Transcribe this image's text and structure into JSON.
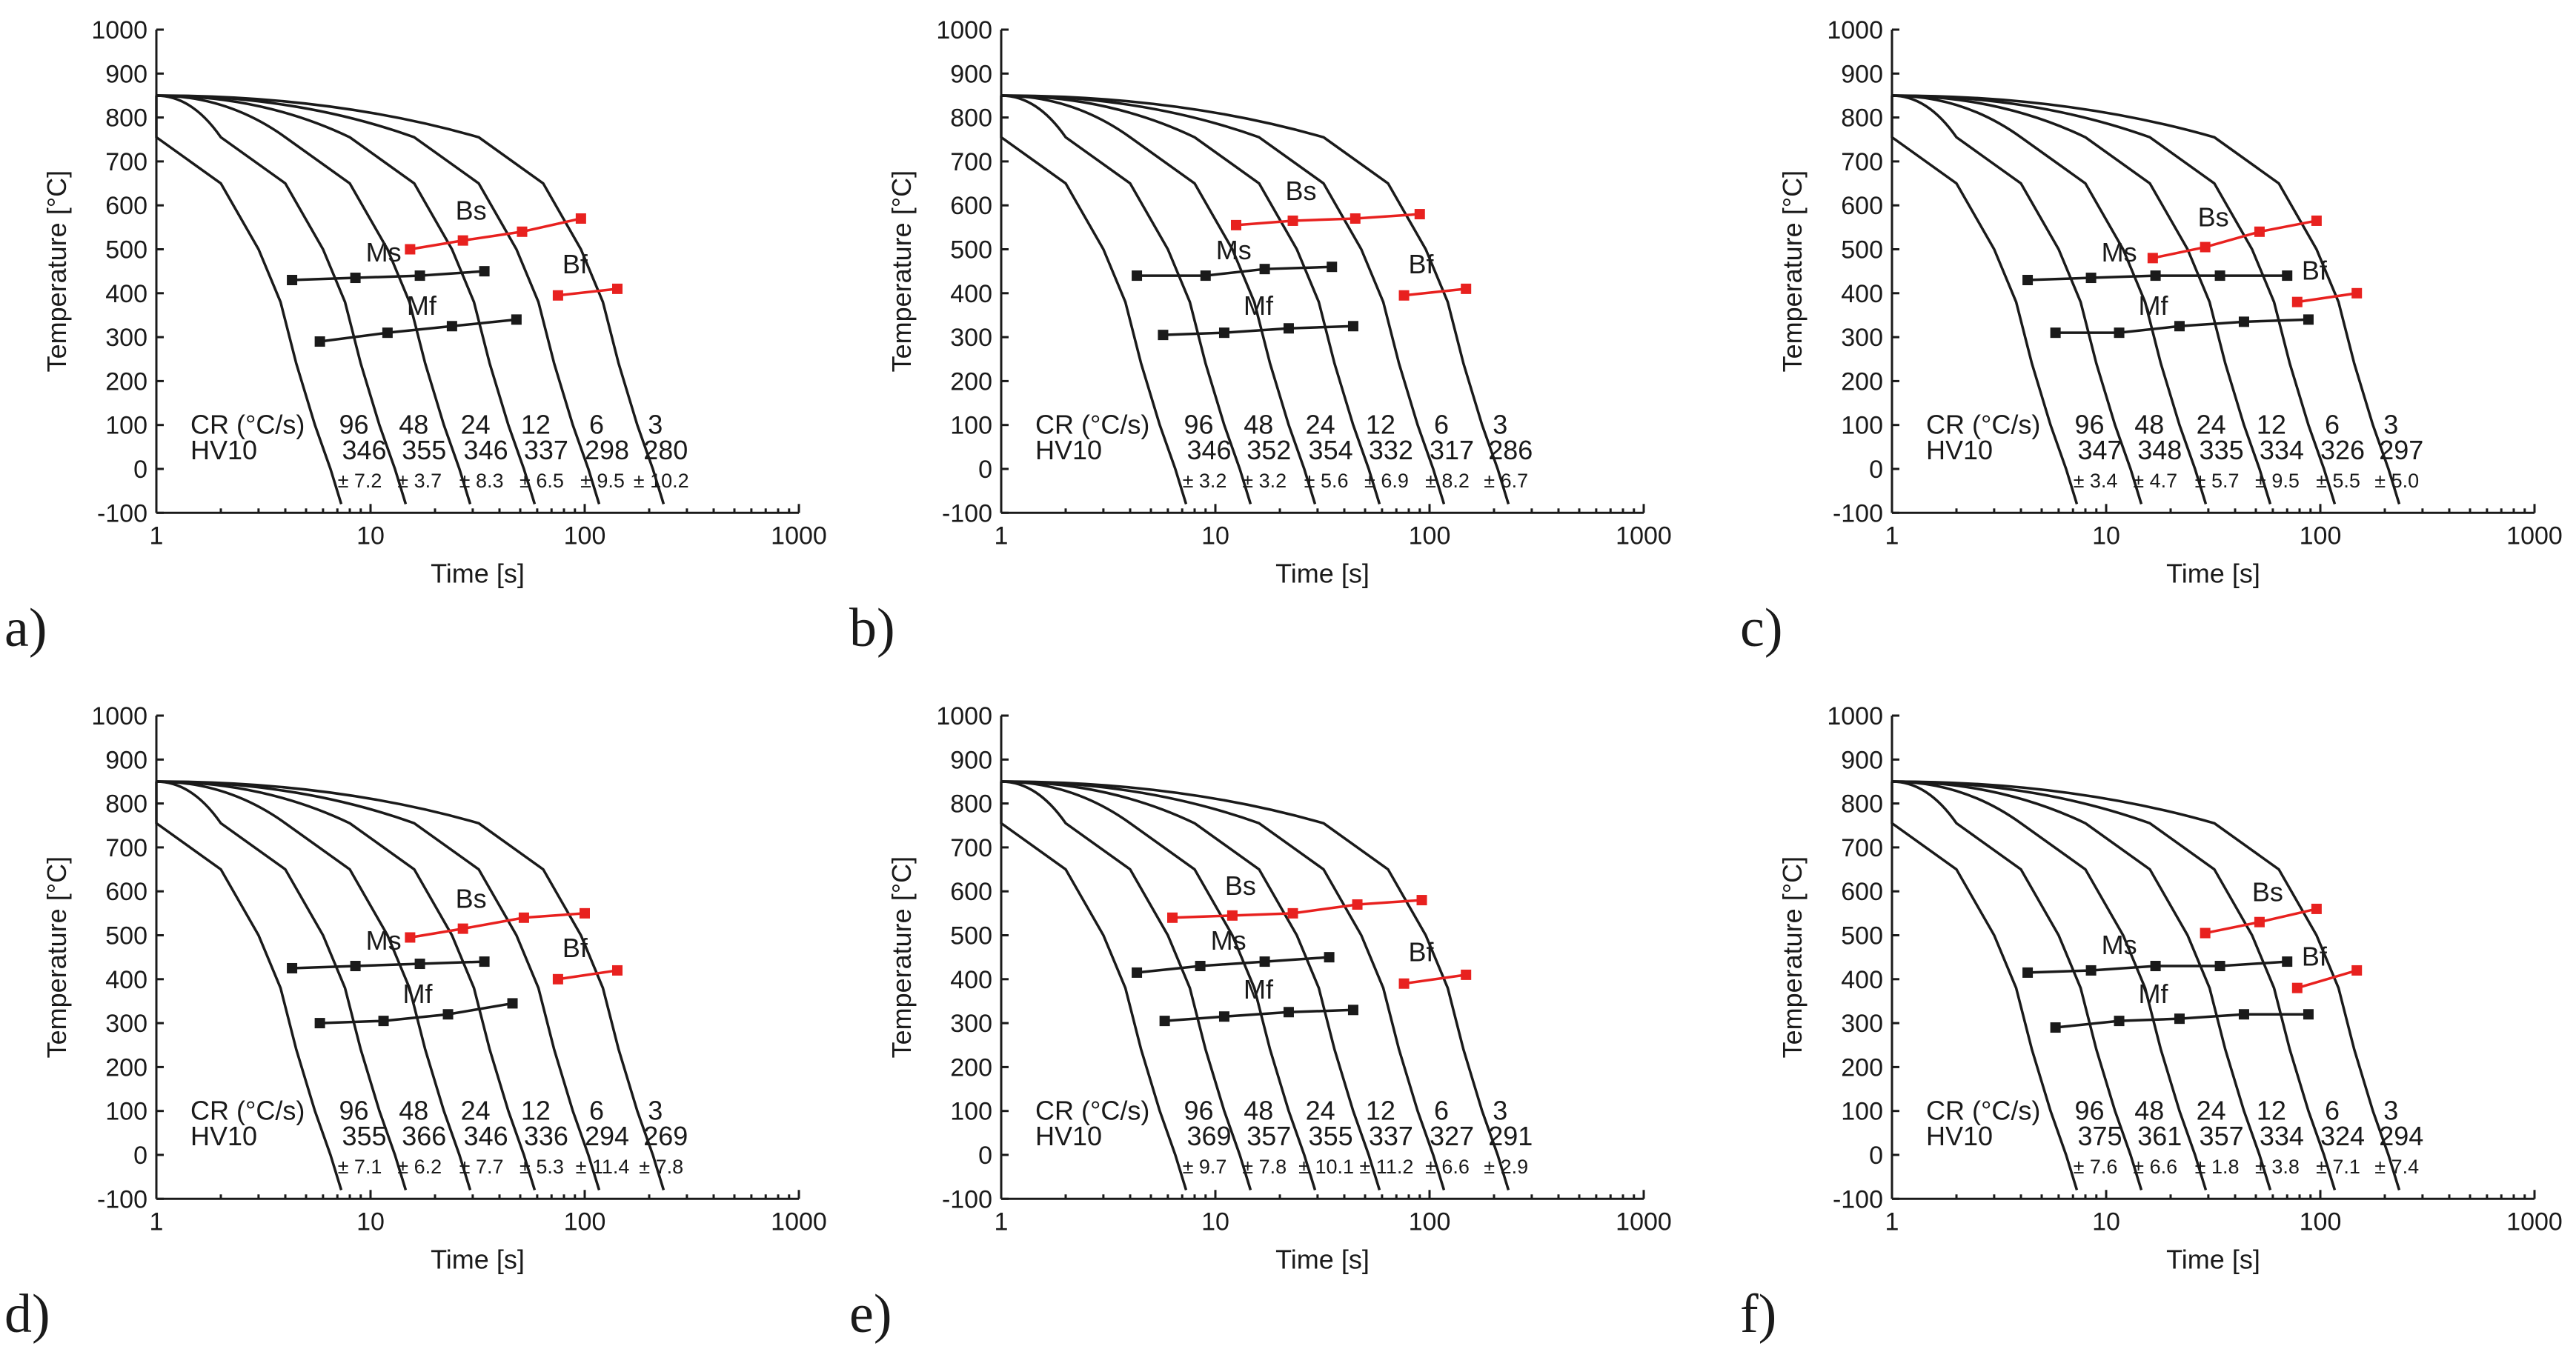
{
  "figure": {
    "x_axis": {
      "title": "Time [s]",
      "min": 1,
      "max": 1000,
      "scale": "log",
      "ticks": [
        1,
        10,
        100,
        1000
      ],
      "tick_labels": [
        "1",
        "10",
        "100",
        "1000"
      ]
    },
    "y_axis": {
      "title": "Temperature [°C]",
      "min": -100,
      "max": 1000,
      "ticks": [
        -100,
        0,
        100,
        200,
        300,
        400,
        500,
        600,
        700,
        800,
        900,
        1000
      ],
      "tick_labels": [
        "-100",
        "0",
        "100",
        "200",
        "300",
        "400",
        "500",
        "600",
        "700",
        "800",
        "900",
        "1000"
      ]
    },
    "cr_label": "CR (°C/s)",
    "hv_label": "HV10",
    "colors": {
      "curve": "#1a1a1a",
      "martensite": "#1a1a1a",
      "bainite": "#e8211f"
    }
  },
  "chart_data": [
    {
      "type": "line",
      "panel": "a)",
      "title": "",
      "xlabel": "Time [s]",
      "ylabel": "Temperature [°C]",
      "x_scale": "log",
      "xlim": [
        1,
        1000
      ],
      "ylim": [
        -100,
        1000
      ],
      "cooling_rates": [
        "96",
        "48",
        "24",
        "12",
        "6",
        "3"
      ],
      "hardness": [
        "346",
        "355",
        "346",
        "337",
        "298",
        "280"
      ],
      "hardness_sd": [
        "± 7.2",
        "± 3.7",
        "± 8.3",
        "± 6.5",
        "± 9.5",
        "± 10.2"
      ],
      "series": [
        {
          "name": "Ms",
          "color": "#1a1a1a",
          "points": [
            [
              4.3,
              430
            ],
            [
              8.5,
              435
            ],
            [
              17,
              440
            ],
            [
              34,
              450
            ]
          ]
        },
        {
          "name": "Mf",
          "color": "#1a1a1a",
          "points": [
            [
              5.8,
              290
            ],
            [
              12,
              310
            ],
            [
              24,
              325
            ],
            [
              48,
              340
            ]
          ]
        },
        {
          "name": "Bs",
          "color": "#e8211f",
          "points": [
            [
              15.3,
              500
            ],
            [
              27,
              520
            ],
            [
              51,
              540
            ],
            [
              96,
              570
            ]
          ]
        },
        {
          "name": "Bf",
          "color": "#e8211f",
          "points": [
            [
              75,
              395
            ],
            [
              142,
              410
            ]
          ]
        }
      ]
    },
    {
      "type": "line",
      "panel": "b)",
      "title": "",
      "xlabel": "Time [s]",
      "ylabel": "Temperature [°C]",
      "x_scale": "log",
      "xlim": [
        1,
        1000
      ],
      "ylim": [
        -100,
        1000
      ],
      "cooling_rates": [
        "96",
        "48",
        "24",
        "12",
        "6",
        "3"
      ],
      "hardness": [
        "346",
        "352",
        "354",
        "332",
        "317",
        "286"
      ],
      "hardness_sd": [
        "± 3.2",
        "± 3.2",
        "± 5.6",
        "± 6.9",
        "± 8.2",
        "± 6.7"
      ],
      "series": [
        {
          "name": "Ms",
          "color": "#1a1a1a",
          "points": [
            [
              4.3,
              440
            ],
            [
              9,
              440
            ],
            [
              17,
              455
            ],
            [
              35,
              460
            ]
          ]
        },
        {
          "name": "Mf",
          "color": "#1a1a1a",
          "points": [
            [
              5.7,
              305
            ],
            [
              11,
              310
            ],
            [
              22,
              320
            ],
            [
              44,
              325
            ]
          ]
        },
        {
          "name": "Bs",
          "color": "#e8211f",
          "points": [
            [
              12.5,
              555
            ],
            [
              23,
              565
            ],
            [
              45,
              570
            ],
            [
              90,
              580
            ]
          ]
        },
        {
          "name": "Bf",
          "color": "#e8211f",
          "points": [
            [
              76,
              395
            ],
            [
              148,
              410
            ]
          ]
        }
      ]
    },
    {
      "type": "line",
      "panel": "c)",
      "title": "",
      "xlabel": "Time [s]",
      "ylabel": "Temperature [°C]",
      "x_scale": "log",
      "xlim": [
        1,
        1000
      ],
      "ylim": [
        -100,
        1000
      ],
      "cooling_rates": [
        "96",
        "48",
        "24",
        "12",
        "6",
        "3"
      ],
      "hardness": [
        "347",
        "348",
        "335",
        "334",
        "326",
        "297"
      ],
      "hardness_sd": [
        "± 3.4",
        "± 4.7",
        "± 5.7",
        "± 9.5",
        "± 5.5",
        "± 5.0"
      ],
      "series": [
        {
          "name": "Ms",
          "color": "#1a1a1a",
          "points": [
            [
              4.3,
              430
            ],
            [
              8.5,
              435
            ],
            [
              17,
              440
            ],
            [
              34,
              440
            ],
            [
              70,
              440
            ]
          ]
        },
        {
          "name": "Mf",
          "color": "#1a1a1a",
          "points": [
            [
              5.8,
              310
            ],
            [
              11.5,
              310
            ],
            [
              22,
              325
            ],
            [
              44,
              335
            ],
            [
              88,
              340
            ]
          ]
        },
        {
          "name": "Bs",
          "color": "#e8211f",
          "points": [
            [
              16.5,
              480
            ],
            [
              29,
              505
            ],
            [
              52,
              540
            ],
            [
              96,
              565
            ]
          ]
        },
        {
          "name": "Bf",
          "color": "#e8211f",
          "points": [
            [
              78,
              380
            ],
            [
              148,
              400
            ]
          ]
        }
      ]
    },
    {
      "type": "line",
      "panel": "d)",
      "title": "",
      "xlabel": "Time [s]",
      "ylabel": "Temperature [°C]",
      "x_scale": "log",
      "xlim": [
        1,
        1000
      ],
      "ylim": [
        -100,
        1000
      ],
      "cooling_rates": [
        "96",
        "48",
        "24",
        "12",
        "6",
        "3"
      ],
      "hardness": [
        "355",
        "366",
        "346",
        "336",
        "294",
        "269"
      ],
      "hardness_sd": [
        "± 7.1",
        "± 6.2",
        "± 7.7",
        "± 5.3",
        "± 11.4",
        "± 7.8"
      ],
      "series": [
        {
          "name": "Ms",
          "color": "#1a1a1a",
          "points": [
            [
              4.3,
              425
            ],
            [
              8.5,
              430
            ],
            [
              17,
              435
            ],
            [
              34,
              440
            ]
          ]
        },
        {
          "name": "Mf",
          "color": "#1a1a1a",
          "points": [
            [
              5.8,
              300
            ],
            [
              11.5,
              305
            ],
            [
              23,
              320
            ],
            [
              46,
              345
            ]
          ]
        },
        {
          "name": "Bs",
          "color": "#e8211f",
          "points": [
            [
              15.3,
              495
            ],
            [
              27,
              515
            ],
            [
              52,
              540
            ],
            [
              100,
              550
            ]
          ]
        },
        {
          "name": "Bf",
          "color": "#e8211f",
          "points": [
            [
              75,
              400
            ],
            [
              142,
              420
            ]
          ]
        }
      ]
    },
    {
      "type": "line",
      "panel": "e)",
      "title": "",
      "xlabel": "Time [s]",
      "ylabel": "Temperature [°C]",
      "x_scale": "log",
      "xlim": [
        1,
        1000
      ],
      "ylim": [
        -100,
        1000
      ],
      "cooling_rates": [
        "96",
        "48",
        "24",
        "12",
        "6",
        "3"
      ],
      "hardness": [
        "369",
        "357",
        "355",
        "337",
        "327",
        "291"
      ],
      "hardness_sd": [
        "± 9.7",
        "± 7.8",
        "± 10.1",
        "± 11.2",
        "± 6.6",
        "± 2.9"
      ],
      "series": [
        {
          "name": "Ms",
          "color": "#1a1a1a",
          "points": [
            [
              4.3,
              415
            ],
            [
              8.5,
              430
            ],
            [
              17,
              440
            ],
            [
              34,
              450
            ]
          ]
        },
        {
          "name": "Mf",
          "color": "#1a1a1a",
          "points": [
            [
              5.8,
              305
            ],
            [
              11,
              315
            ],
            [
              22,
              325
            ],
            [
              44,
              330
            ]
          ]
        },
        {
          "name": "Bs",
          "color": "#e8211f",
          "points": [
            [
              6.3,
              540
            ],
            [
              12,
              545
            ],
            [
              23,
              550
            ],
            [
              46,
              570
            ],
            [
              92,
              580
            ]
          ]
        },
        {
          "name": "Bf",
          "color": "#e8211f",
          "points": [
            [
              76,
              390
            ],
            [
              148,
              410
            ]
          ]
        }
      ]
    },
    {
      "type": "line",
      "panel": "f)",
      "title": "",
      "xlabel": "Time [s]",
      "ylabel": "Temperature [°C]",
      "x_scale": "log",
      "xlim": [
        1,
        1000
      ],
      "ylim": [
        -100,
        1000
      ],
      "cooling_rates": [
        "96",
        "48",
        "24",
        "12",
        "6",
        "3"
      ],
      "hardness": [
        "375",
        "361",
        "357",
        "334",
        "324",
        "294"
      ],
      "hardness_sd": [
        "± 7.6",
        "± 6.6",
        "± 1.8",
        "± 3.8",
        "± 7.1",
        "± 7.4"
      ],
      "series": [
        {
          "name": "Ms",
          "color": "#1a1a1a",
          "points": [
            [
              4.3,
              415
            ],
            [
              8.5,
              420
            ],
            [
              17,
              430
            ],
            [
              34,
              430
            ],
            [
              70,
              440
            ]
          ]
        },
        {
          "name": "Mf",
          "color": "#1a1a1a",
          "points": [
            [
              5.8,
              290
            ],
            [
              11.5,
              305
            ],
            [
              22,
              310
            ],
            [
              44,
              320
            ],
            [
              88,
              320
            ]
          ]
        },
        {
          "name": "Bs",
          "color": "#e8211f",
          "points": [
            [
              29,
              505
            ],
            [
              52,
              530
            ],
            [
              96,
              560
            ]
          ]
        },
        {
          "name": "Bf",
          "color": "#e8211f",
          "points": [
            [
              78,
              380
            ],
            [
              148,
              420
            ]
          ]
        }
      ]
    }
  ]
}
